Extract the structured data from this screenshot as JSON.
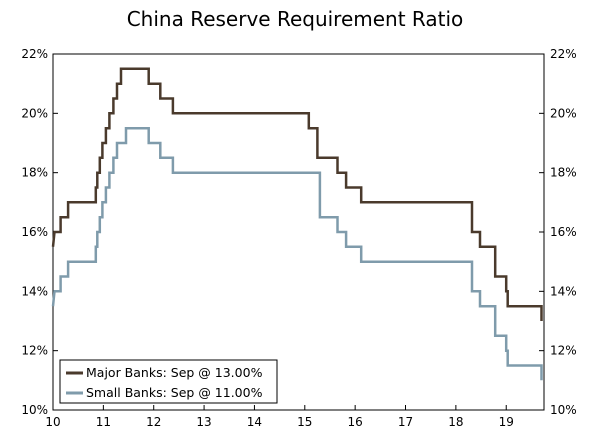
{
  "chart_data": {
    "type": "line",
    "title": "China Reserve Requirement Ratio",
    "xlabel": "",
    "ylabel": "",
    "xlim": [
      10,
      19.75
    ],
    "ylim": [
      10,
      22
    ],
    "x_ticks": [
      "10",
      "11",
      "12",
      "13",
      "14",
      "15",
      "16",
      "17",
      "18",
      "19"
    ],
    "y_ticks_left": [
      "10%",
      "12%",
      "14%",
      "16%",
      "18%",
      "20%",
      "22%"
    ],
    "y_ticks_right": [
      "10%",
      "12%",
      "14%",
      "16%",
      "18%",
      "20%",
      "22%"
    ],
    "grid": false,
    "legend_position": "bottom-left",
    "series": [
      {
        "name": "Major Banks: Sep @ 13.00%",
        "color": "#4a3a2c",
        "points": [
          [
            10.0,
            15.5
          ],
          [
            10.03,
            16.0
          ],
          [
            10.15,
            16.0
          ],
          [
            10.15,
            16.5
          ],
          [
            10.3,
            16.5
          ],
          [
            10.3,
            17.0
          ],
          [
            10.85,
            17.0
          ],
          [
            10.85,
            17.5
          ],
          [
            10.88,
            17.5
          ],
          [
            10.88,
            18.0
          ],
          [
            10.93,
            18.0
          ],
          [
            10.93,
            18.5
          ],
          [
            10.98,
            18.5
          ],
          [
            10.98,
            19.0
          ],
          [
            11.05,
            19.0
          ],
          [
            11.05,
            19.5
          ],
          [
            11.12,
            19.5
          ],
          [
            11.12,
            20.0
          ],
          [
            11.2,
            20.0
          ],
          [
            11.2,
            20.5
          ],
          [
            11.27,
            20.5
          ],
          [
            11.27,
            21.0
          ],
          [
            11.35,
            21.0
          ],
          [
            11.35,
            21.5
          ],
          [
            11.9,
            21.5
          ],
          [
            11.9,
            21.0
          ],
          [
            12.13,
            21.0
          ],
          [
            12.13,
            20.5
          ],
          [
            12.38,
            20.5
          ],
          [
            12.38,
            20.0
          ],
          [
            15.08,
            20.0
          ],
          [
            15.08,
            19.5
          ],
          [
            15.25,
            19.5
          ],
          [
            15.25,
            18.5
          ],
          [
            15.65,
            18.5
          ],
          [
            15.65,
            18.0
          ],
          [
            15.82,
            18.0
          ],
          [
            15.82,
            17.5
          ],
          [
            16.12,
            17.5
          ],
          [
            16.12,
            17.0
          ],
          [
            18.32,
            17.0
          ],
          [
            18.32,
            16.0
          ],
          [
            18.48,
            16.0
          ],
          [
            18.48,
            15.5
          ],
          [
            18.78,
            15.5
          ],
          [
            18.78,
            14.5
          ],
          [
            19.0,
            14.5
          ],
          [
            19.0,
            14.0
          ],
          [
            19.03,
            14.0
          ],
          [
            19.03,
            13.5
          ],
          [
            19.7,
            13.5
          ],
          [
            19.7,
            13.0
          ]
        ]
      },
      {
        "name": "Small Banks: Sep @ 11.00%",
        "color": "#7f9bab",
        "points": [
          [
            10.0,
            13.5
          ],
          [
            10.03,
            14.0
          ],
          [
            10.15,
            14.0
          ],
          [
            10.15,
            14.5
          ],
          [
            10.3,
            14.5
          ],
          [
            10.3,
            15.0
          ],
          [
            10.85,
            15.0
          ],
          [
            10.85,
            15.5
          ],
          [
            10.88,
            15.5
          ],
          [
            10.88,
            16.0
          ],
          [
            10.93,
            16.0
          ],
          [
            10.93,
            16.5
          ],
          [
            10.98,
            16.5
          ],
          [
            10.98,
            17.0
          ],
          [
            11.05,
            17.0
          ],
          [
            11.05,
            17.5
          ],
          [
            11.12,
            17.5
          ],
          [
            11.12,
            18.0
          ],
          [
            11.2,
            18.0
          ],
          [
            11.2,
            18.5
          ],
          [
            11.27,
            18.5
          ],
          [
            11.27,
            19.0
          ],
          [
            11.45,
            19.0
          ],
          [
            11.45,
            19.5
          ],
          [
            11.9,
            19.5
          ],
          [
            11.9,
            19.0
          ],
          [
            12.13,
            19.0
          ],
          [
            12.13,
            18.5
          ],
          [
            12.38,
            18.5
          ],
          [
            12.38,
            18.0
          ],
          [
            15.3,
            18.0
          ],
          [
            15.3,
            16.5
          ],
          [
            15.65,
            16.5
          ],
          [
            15.65,
            16.0
          ],
          [
            15.82,
            16.0
          ],
          [
            15.82,
            15.5
          ],
          [
            16.12,
            15.5
          ],
          [
            16.12,
            15.0
          ],
          [
            18.32,
            15.0
          ],
          [
            18.32,
            14.0
          ],
          [
            18.48,
            14.0
          ],
          [
            18.48,
            13.5
          ],
          [
            18.78,
            13.5
          ],
          [
            18.78,
            12.5
          ],
          [
            19.0,
            12.5
          ],
          [
            19.0,
            12.0
          ],
          [
            19.03,
            12.0
          ],
          [
            19.03,
            11.5
          ],
          [
            19.7,
            11.5
          ],
          [
            19.7,
            11.0
          ]
        ]
      }
    ]
  }
}
